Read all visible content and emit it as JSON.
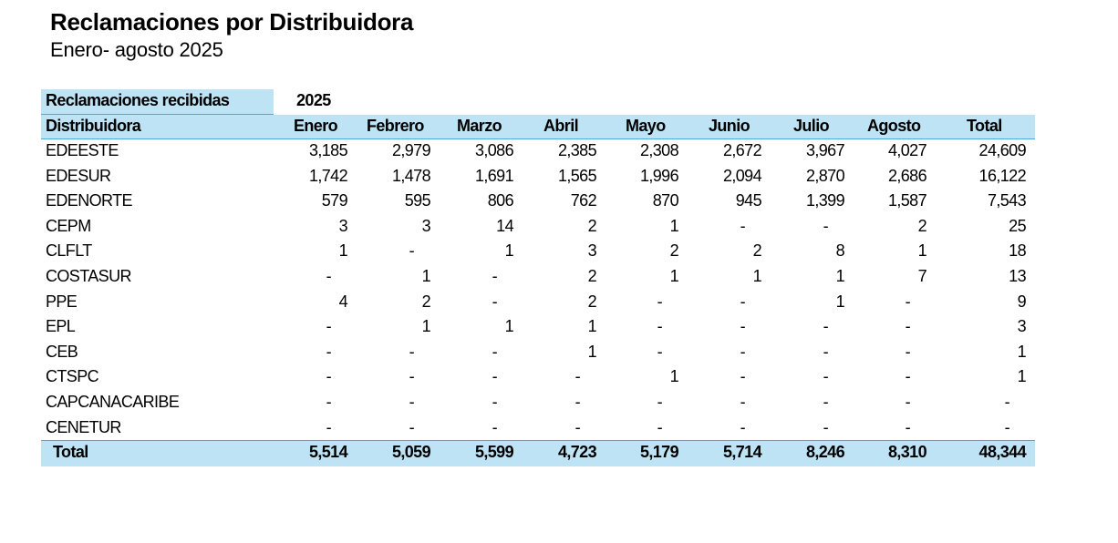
{
  "title": "Reclamaciones por Distribuidora",
  "subtitle": "Enero- agosto 2025",
  "header": {
    "label": "Reclamaciones recibidas",
    "year": "2025"
  },
  "table": {
    "columns": [
      "Distribuidora",
      "Enero",
      "Febrero",
      "Marzo",
      "Abril",
      "Mayo",
      "Junio",
      "Julio",
      "Agosto",
      "Total"
    ],
    "rows": [
      [
        "EDEESTE",
        "3,185",
        "2,979",
        "3,086",
        "2,385",
        "2,308",
        "2,672",
        "3,967",
        "4,027",
        "24,609"
      ],
      [
        "EDESUR",
        "1,742",
        "1,478",
        "1,691",
        "1,565",
        "1,996",
        "2,094",
        "2,870",
        "2,686",
        "16,122"
      ],
      [
        "EDENORTE",
        "579",
        "595",
        "806",
        "762",
        "870",
        "945",
        "1,399",
        "1,587",
        "7,543"
      ],
      [
        "CEPM",
        "3",
        "3",
        "14",
        "2",
        "1",
        "-",
        "-",
        "2",
        "25"
      ],
      [
        "CLFLT",
        "1",
        "-",
        "1",
        "3",
        "2",
        "2",
        "8",
        "1",
        "18"
      ],
      [
        "COSTASUR",
        "-",
        "1",
        "-",
        "2",
        "1",
        "1",
        "1",
        "7",
        "13"
      ],
      [
        "PPE",
        "4",
        "2",
        "-",
        "2",
        "-",
        "-",
        "1",
        "-",
        "9"
      ],
      [
        "EPL",
        "-",
        "1",
        "1",
        "1",
        "-",
        "-",
        "-",
        "-",
        "3"
      ],
      [
        "CEB",
        "-",
        "-",
        "-",
        "1",
        "-",
        "-",
        "-",
        "-",
        "1"
      ],
      [
        "CTSPC",
        "-",
        "-",
        "-",
        "-",
        "1",
        "-",
        "-",
        "-",
        "1"
      ],
      [
        "CAPCANACARIBE",
        "-",
        "-",
        "-",
        "-",
        "-",
        "-",
        "-",
        "-",
        "-"
      ],
      [
        "CENETUR",
        "-",
        "-",
        "-",
        "-",
        "-",
        "-",
        "-",
        "-",
        "-"
      ]
    ],
    "total": [
      "Total",
      "5,514",
      "5,059",
      "5,599",
      "4,723",
      "5,179",
      "5,714",
      "8,246",
      "8,310",
      "48,344"
    ]
  }
}
